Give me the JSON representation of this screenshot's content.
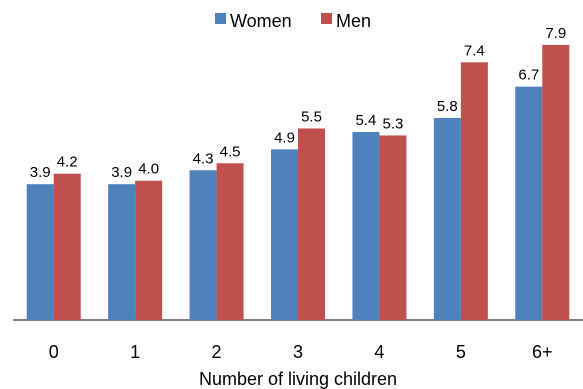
{
  "chart_data": {
    "type": "bar",
    "categories": [
      "0",
      "1",
      "2",
      "3",
      "4",
      "5",
      "6+"
    ],
    "series": [
      {
        "name": "Women",
        "values": [
          3.9,
          3.9,
          4.3,
          4.9,
          5.4,
          5.8,
          6.7
        ],
        "color": "#4f81bd"
      },
      {
        "name": "Men",
        "values": [
          4.2,
          4.0,
          4.5,
          5.5,
          5.3,
          7.4,
          7.9
        ],
        "color": "#c0504d"
      }
    ],
    "value_labels": {
      "Women": [
        "3.9",
        "3.9",
        "4.3",
        "4.9",
        "5.4",
        "5.8",
        "6.7"
      ],
      "Men": [
        "4.2",
        "4.0",
        "4.5",
        "5.5",
        "5.3",
        "7.4",
        "7.9"
      ]
    },
    "xlabel": "Number of living children",
    "ylabel": "",
    "ylim": [
      0,
      8.5
    ],
    "grid": false,
    "legend_position": "top-center"
  }
}
